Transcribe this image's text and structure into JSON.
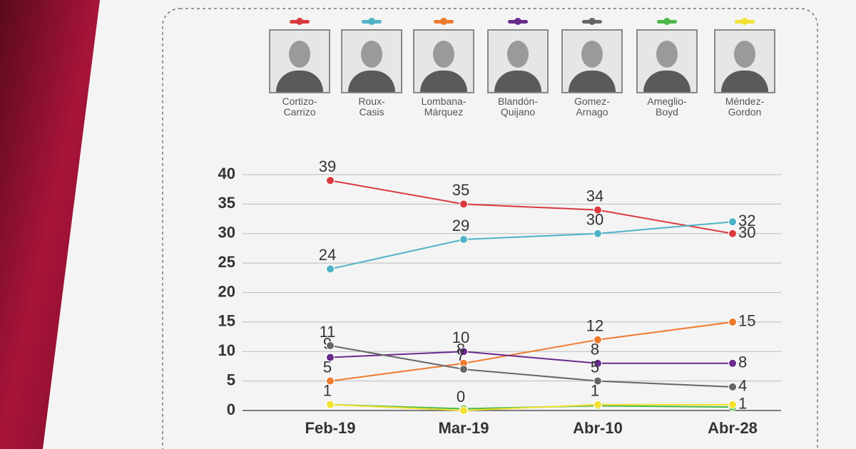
{
  "chart_data": {
    "type": "line",
    "categories": [
      "Feb-19",
      "Mar-19",
      "Abr-10",
      "Abr-28"
    ],
    "ylim": [
      0,
      40
    ],
    "yticks": [
      0,
      5,
      10,
      15,
      20,
      25,
      30,
      35,
      40
    ],
    "grid": true,
    "series": [
      {
        "name": "Cortizo-Carrizo",
        "color": "#d9393e",
        "values": [
          39,
          35,
          34,
          30
        ],
        "labels": true
      },
      {
        "name": "Roux-Casis",
        "color": "#4fb3c8",
        "values": [
          24,
          29,
          30,
          32
        ],
        "labels": true
      },
      {
        "name": "Lombana-Márquez",
        "color": "#ef7a2e",
        "values": [
          5,
          8,
          12,
          15
        ],
        "labels": true
      },
      {
        "name": "Blandón-Quijano",
        "color": "#6a2a8c",
        "values": [
          9,
          10,
          8,
          8
        ],
        "labels": true
      },
      {
        "name": "Gomez-Arnago",
        "color": "#666666",
        "values": [
          11,
          7,
          5,
          4
        ],
        "labels": true
      },
      {
        "name": "Ameglio-Boyd",
        "color": "#4cb848",
        "values": [
          1,
          0.3,
          0.8,
          0.6
        ],
        "labels": false
      },
      {
        "name": "Méndez-Gordon",
        "color": "#f2e030",
        "values": [
          1,
          0,
          1,
          1
        ],
        "labels": true
      }
    ]
  }
}
